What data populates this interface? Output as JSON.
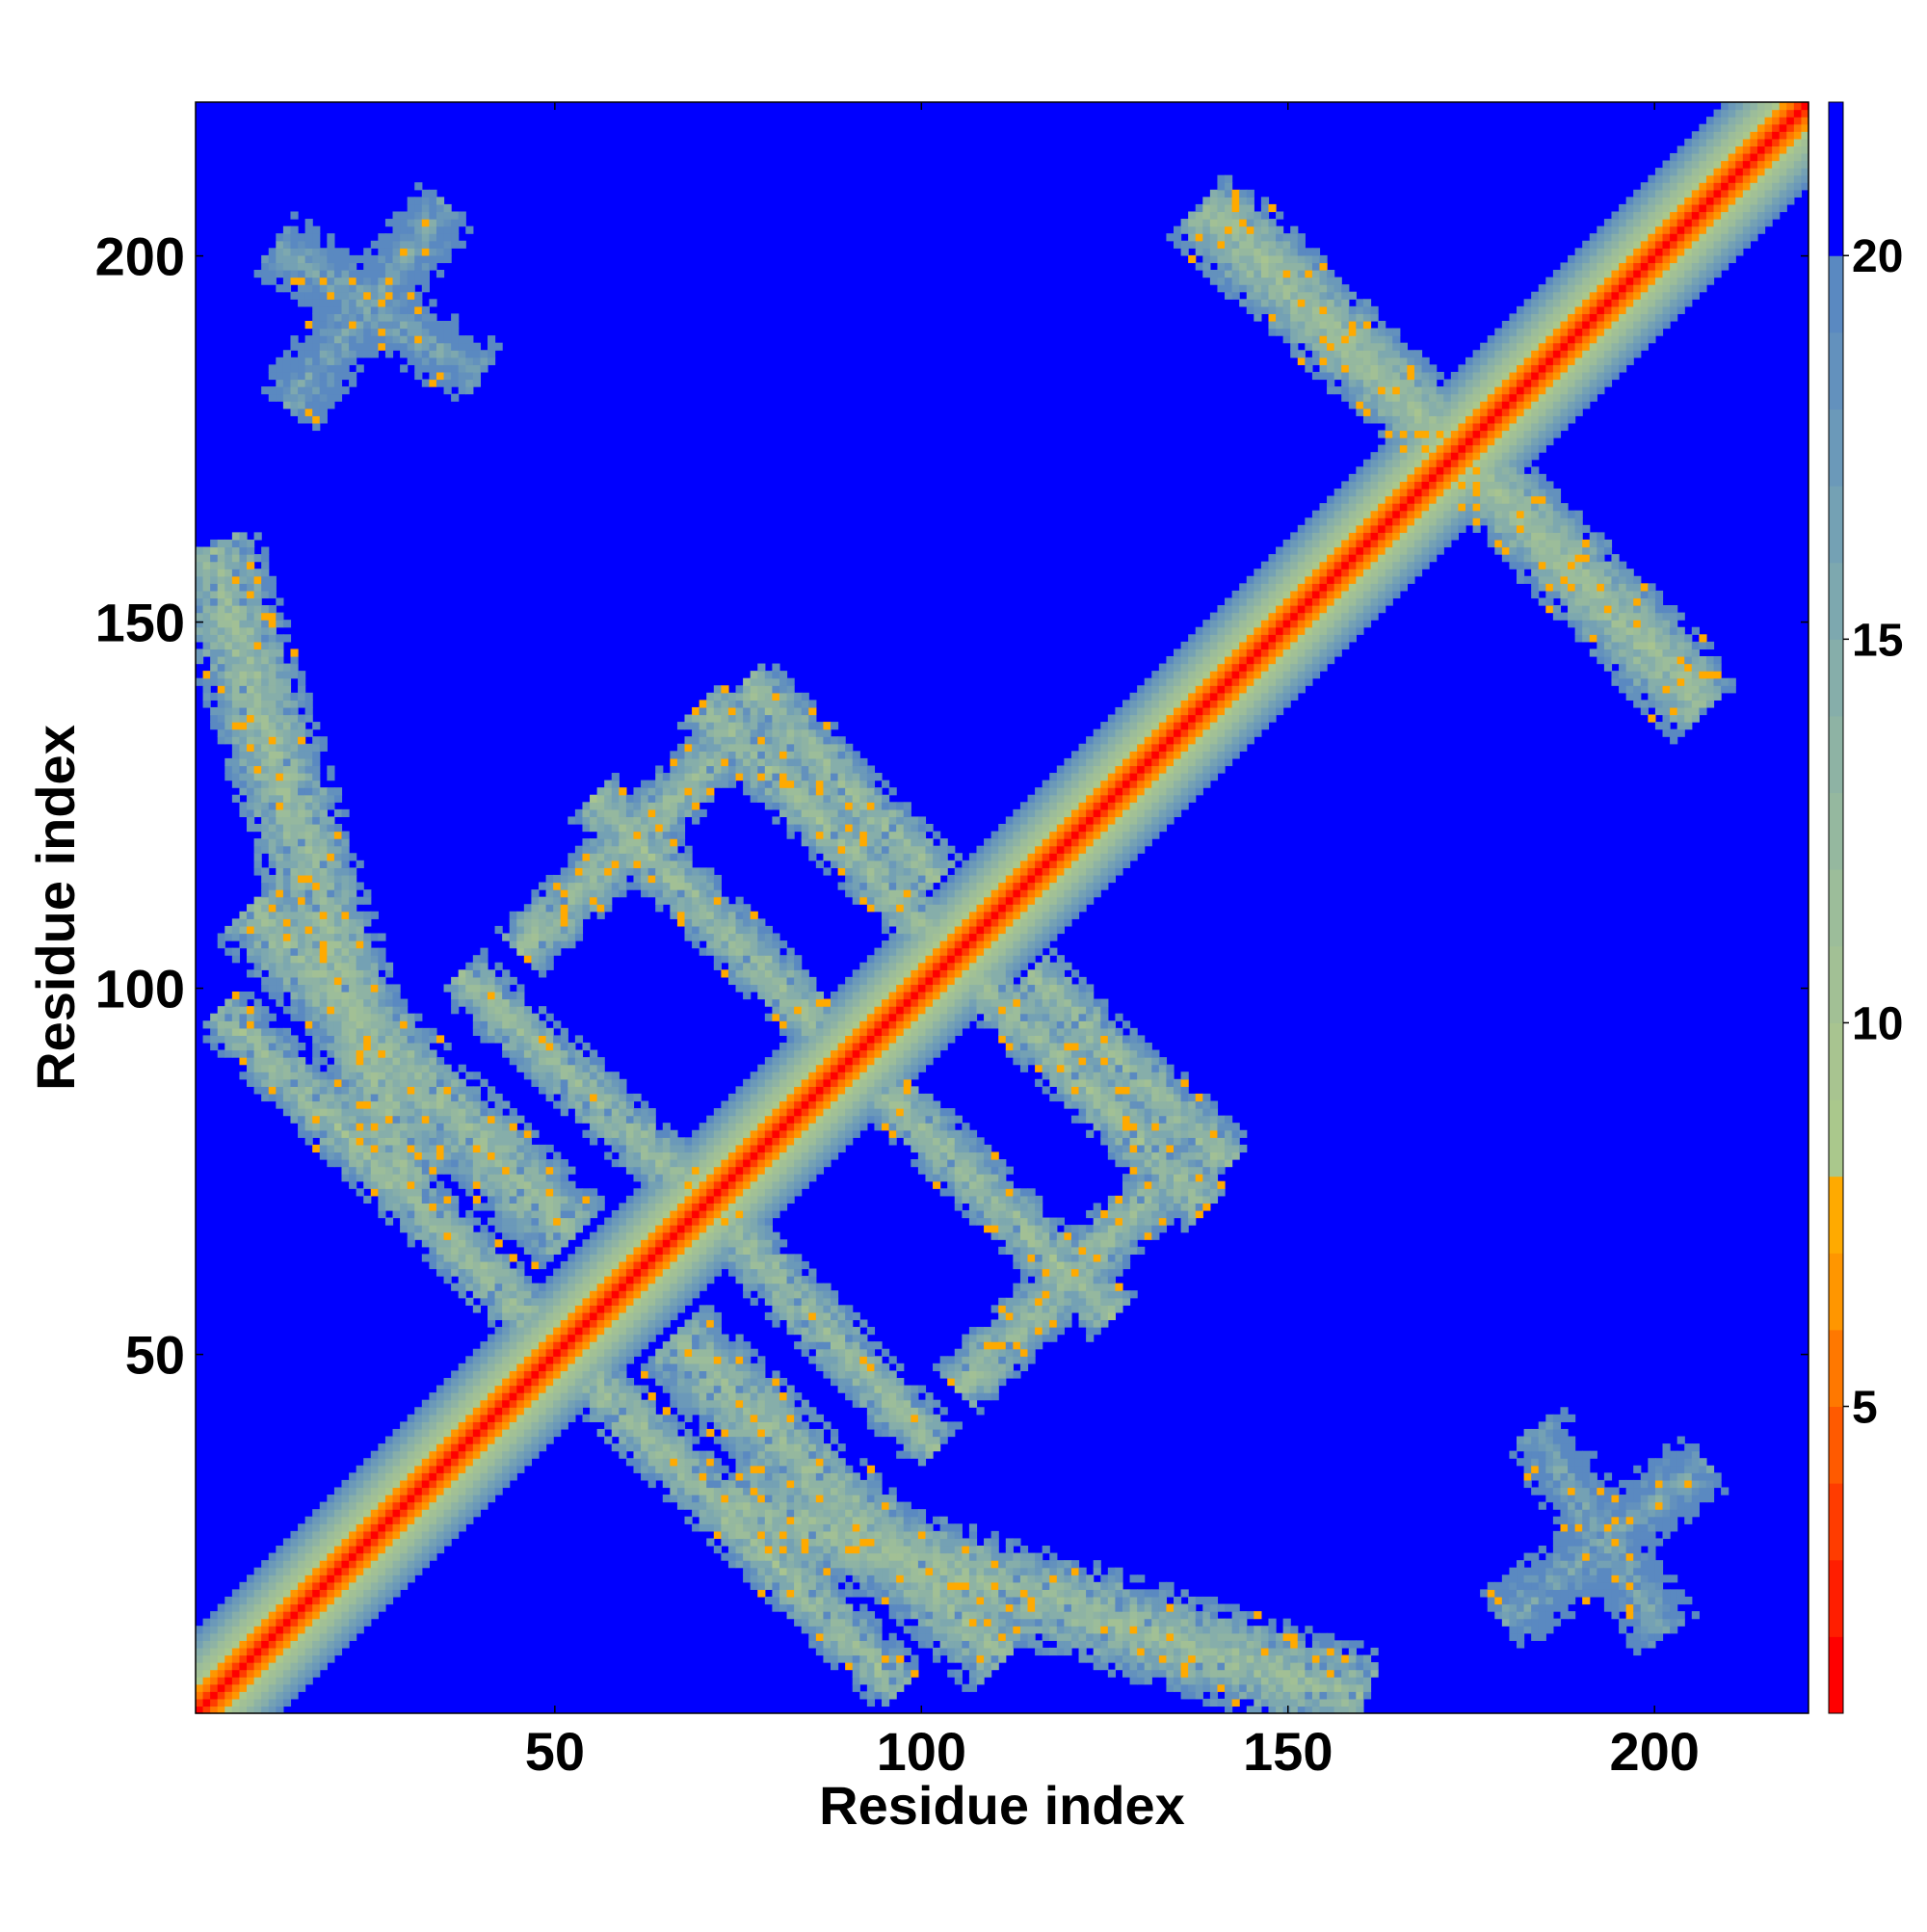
{
  "chart_data": {
    "type": "heatmap",
    "title": "",
    "xlabel": "Residue index",
    "ylabel": "Residue index",
    "xlim": [
      1,
      221
    ],
    "ylim": [
      1,
      221
    ],
    "x_ticks": [
      50,
      100,
      150,
      200
    ],
    "y_ticks": [
      50,
      100,
      150,
      200
    ],
    "n_residues": 221,
    "colorbar": {
      "ticks": [
        5,
        10,
        15,
        20
      ],
      "range": [
        1,
        22
      ],
      "levels": [
        {
          "from": 1,
          "to": 2,
          "color": "#ff0000"
        },
        {
          "from": 2,
          "to": 3,
          "color": "#ff1e00"
        },
        {
          "from": 3,
          "to": 4,
          "color": "#ff3c00"
        },
        {
          "from": 4,
          "to": 5,
          "color": "#ff5a00"
        },
        {
          "from": 5,
          "to": 6,
          "color": "#ff7800"
        },
        {
          "from": 6,
          "to": 7,
          "color": "#ff9600"
        },
        {
          "from": 7,
          "to": 8,
          "color": "#ffaa00"
        },
        {
          "from": 8,
          "to": 9,
          "color": "#aac88c"
        },
        {
          "from": 9,
          "to": 10,
          "color": "#a8c490"
        },
        {
          "from": 10,
          "to": 11,
          "color": "#a2c095"
        },
        {
          "from": 11,
          "to": 12,
          "color": "#9cbd9a"
        },
        {
          "from": 12,
          "to": 13,
          "color": "#95b89f"
        },
        {
          "from": 13,
          "to": 14,
          "color": "#8eb3a4"
        },
        {
          "from": 14,
          "to": 15,
          "color": "#86aeaa"
        },
        {
          "from": 15,
          "to": 16,
          "color": "#7da8af"
        },
        {
          "from": 16,
          "to": 17,
          "color": "#74a1b4"
        },
        {
          "from": 17,
          "to": 18,
          "color": "#6b99b9"
        },
        {
          "from": 18,
          "to": 19,
          "color": "#6391bd"
        },
        {
          "from": 19,
          "to": 20,
          "color": "#5a89c1"
        },
        {
          "from": 20,
          "to": 22,
          "color": "#0000ff"
        }
      ]
    },
    "background_color": "#0000ff",
    "diagonal": {
      "profile": [
        {
          "max_offset": 1,
          "value": 1.5
        },
        {
          "max_offset": 2,
          "value": 3
        },
        {
          "max_offset": 3,
          "value": 5
        },
        {
          "max_offset": 4,
          "value": 6.5
        },
        {
          "max_offset": 5,
          "value": 8.5
        },
        {
          "max_offset": 6,
          "value": 10
        },
        {
          "max_offset": 7,
          "value": 11.5
        },
        {
          "max_offset": 8,
          "value": 13
        },
        {
          "max_offset": 9,
          "value": 14.5
        },
        {
          "max_offset": 10,
          "value": 16
        },
        {
          "max_offset": 11,
          "value": 17.5
        },
        {
          "max_offset": 12,
          "value": 19
        }
      ]
    },
    "contact_bands": [
      {
        "i_start": 28,
        "j_start": 74,
        "i_end": 2,
        "j_end": 158,
        "width": 14,
        "core_value": 12
      },
      {
        "i_start": 66,
        "j_start": 50,
        "i_end": 109,
        "j_end": 8,
        "width": 13,
        "core_value": 12
      },
      {
        "i_start": 55,
        "j_start": 44,
        "i_end": 95,
        "j_end": 4,
        "width": 9,
        "core_value": 12
      },
      {
        "i_start": 37,
        "j_start": 100,
        "i_end": 73,
        "j_end": 66,
        "width": 9,
        "core_value": 12
      },
      {
        "i_start": 55,
        "j_start": 124,
        "i_end": 84,
        "j_end": 95,
        "width": 9,
        "core_value": 12
      },
      {
        "i_start": 115,
        "j_start": 100,
        "i_end": 140,
        "j_end": 76,
        "width": 9,
        "core_value": 12
      },
      {
        "i_start": 130,
        "j_start": 70,
        "i_end": 105,
        "j_end": 45,
        "width": 9,
        "core_value": 12
      },
      {
        "i_start": 100,
        "j_start": 107,
        "i_end": 70,
        "j_end": 137,
        "width": 9,
        "core_value": 12
      },
      {
        "i_start": 141,
        "j_start": 204,
        "i_end": 172,
        "j_end": 173,
        "width": 12,
        "core_value": 12
      },
      {
        "i_start": 175,
        "j_start": 170,
        "i_end": 205,
        "j_end": 138,
        "width": 12,
        "core_value": 12
      },
      {
        "i_start": 37,
        "j_start": 184,
        "i_end": 12,
        "j_end": 200,
        "width": 10,
        "core_value": 16
      },
      {
        "i_start": 180,
        "j_start": 13,
        "i_end": 205,
        "j_end": 33,
        "width": 10,
        "core_value": 16
      }
    ]
  }
}
